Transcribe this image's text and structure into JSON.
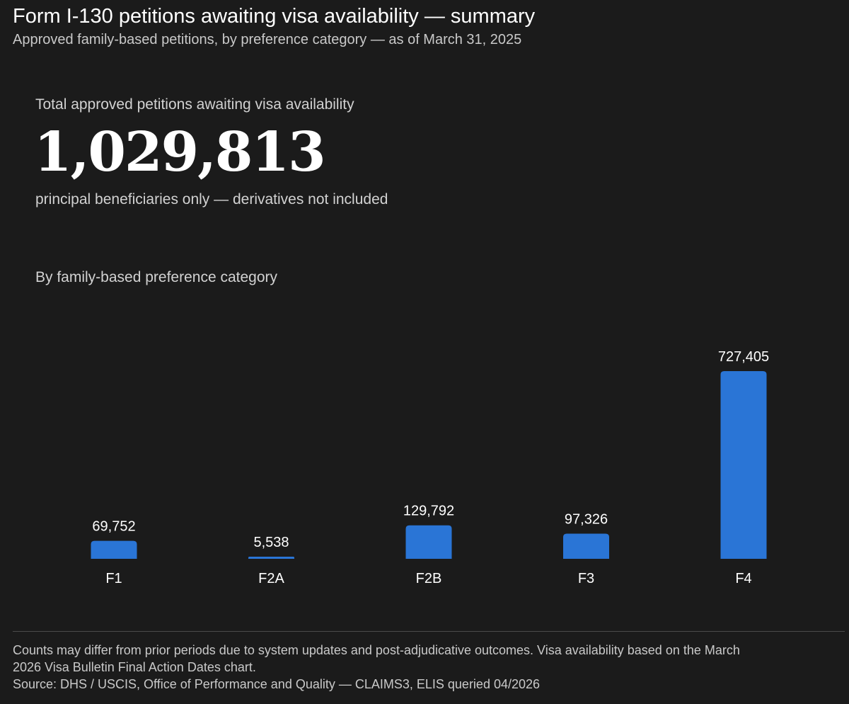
{
  "header": {
    "title": "Form I-130 petitions awaiting visa availability — summary",
    "subtitle": "Approved family-based petitions, by preference category — as of March 31, 2025"
  },
  "kpi": {
    "label": "Total approved petitions awaiting visa availability",
    "value": "1,029,813",
    "note": "principal beneficiaries only — derivatives not included"
  },
  "chart_heading": "By family-based preference category",
  "chart_data": {
    "type": "bar",
    "categories": [
      "F1",
      "F2A",
      "F2B",
      "F3",
      "F4"
    ],
    "values": [
      69752,
      5538,
      129792,
      97326,
      727405
    ],
    "value_labels": [
      "69,752",
      "5,538",
      "129,792",
      "97,326",
      "727,405"
    ],
    "ylim": [
      0,
      727405
    ],
    "bar_color": "#2a75d6",
    "grid": false
  },
  "footer": {
    "note_line1": "Counts may differ from prior periods due to system updates and post-adjudicative outcomes. Visa availability based on the March",
    "note_line2": "2026 Visa Bulletin Final Action Dates chart.",
    "source": "Source: DHS / USCIS, Office of Performance and Quality — CLAIMS3, ELIS queried 04/2026"
  }
}
